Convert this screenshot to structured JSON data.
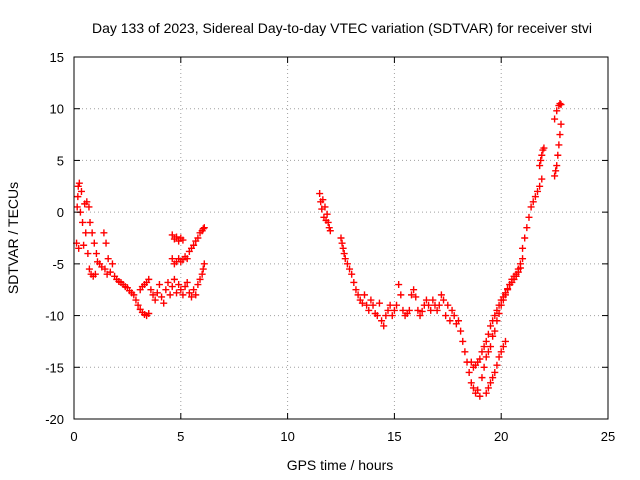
{
  "chart_data": {
    "type": "scatter",
    "title": "Day 133 of 2023, Sidereal Day-to-day VTEC variation (SDTVAR) for receiver stvi",
    "xlabel": "GPS time / hours",
    "ylabel": "SDTVAR / TECUs",
    "xlim": [
      0,
      25
    ],
    "ylim": [
      -20,
      15
    ],
    "xticks": [
      0,
      5,
      10,
      15,
      20,
      25
    ],
    "yticks": [
      -20,
      -15,
      -10,
      -5,
      0,
      5,
      10,
      15
    ],
    "xtick_labels": [
      "0",
      "5",
      "10",
      "15",
      "20",
      "25"
    ],
    "ytick_labels": [
      "-20",
      "-15",
      "-10",
      "-5",
      "0",
      "5",
      "10",
      "15"
    ],
    "grid": true,
    "marker": "+",
    "color": "#ff0000",
    "series": [
      {
        "name": "SDTVAR",
        "points": [
          [
            0.12,
            -3.0
          ],
          [
            0.15,
            0.5
          ],
          [
            0.18,
            1.5
          ],
          [
            0.2,
            2.5
          ],
          [
            0.22,
            -3.5
          ],
          [
            0.25,
            2.8
          ],
          [
            0.3,
            0.0
          ],
          [
            0.35,
            2.0
          ],
          [
            0.4,
            -1.0
          ],
          [
            0.45,
            -3.2
          ],
          [
            0.5,
            0.8
          ],
          [
            0.55,
            -2.0
          ],
          [
            0.6,
            1.0
          ],
          [
            0.65,
            -4.0
          ],
          [
            0.7,
            0.5
          ],
          [
            0.72,
            -5.5
          ],
          [
            0.75,
            -1.0
          ],
          [
            0.8,
            -6.0
          ],
          [
            0.85,
            -2.0
          ],
          [
            0.9,
            -6.2
          ],
          [
            0.95,
            -3.0
          ],
          [
            1.0,
            -6.0
          ],
          [
            1.05,
            -4.0
          ],
          [
            1.1,
            -4.8
          ],
          [
            1.2,
            -5.0
          ],
          [
            1.3,
            -5.3
          ],
          [
            1.4,
            -2.0
          ],
          [
            1.45,
            -5.5
          ],
          [
            1.5,
            -3.0
          ],
          [
            1.55,
            -6.0
          ],
          [
            1.6,
            -4.5
          ],
          [
            1.7,
            -5.8
          ],
          [
            1.8,
            -5.0
          ],
          [
            1.9,
            -6.2
          ],
          [
            2.0,
            -6.5
          ],
          [
            2.1,
            -6.7
          ],
          [
            2.2,
            -6.8
          ],
          [
            2.3,
            -7.0
          ],
          [
            2.4,
            -7.2
          ],
          [
            2.5,
            -7.3
          ],
          [
            2.6,
            -7.6
          ],
          [
            2.7,
            -7.8
          ],
          [
            2.8,
            -8.0
          ],
          [
            2.9,
            -8.5
          ],
          [
            3.0,
            -9.0
          ],
          [
            3.1,
            -9.4
          ],
          [
            3.2,
            -9.7
          ],
          [
            3.3,
            -9.9
          ],
          [
            3.4,
            -10.0
          ],
          [
            3.5,
            -9.8
          ],
          [
            3.1,
            -7.5
          ],
          [
            3.2,
            -7.2
          ],
          [
            3.3,
            -7.0
          ],
          [
            3.4,
            -6.8
          ],
          [
            3.5,
            -6.5
          ],
          [
            3.6,
            -7.5
          ],
          [
            3.7,
            -8.0
          ],
          [
            3.8,
            -8.5
          ],
          [
            3.9,
            -7.8
          ],
          [
            4.0,
            -7.0
          ],
          [
            4.1,
            -8.2
          ],
          [
            4.2,
            -8.8
          ],
          [
            4.3,
            -7.5
          ],
          [
            4.4,
            -6.8
          ],
          [
            4.5,
            -8.0
          ],
          [
            4.6,
            -7.2
          ],
          [
            4.7,
            -6.5
          ],
          [
            4.8,
            -7.8
          ],
          [
            4.9,
            -7.0
          ],
          [
            5.0,
            -7.5
          ],
          [
            5.1,
            -8.0
          ],
          [
            5.2,
            -7.2
          ],
          [
            5.3,
            -6.8
          ],
          [
            5.4,
            -7.8
          ],
          [
            5.5,
            -8.2
          ],
          [
            5.6,
            -7.5
          ],
          [
            5.7,
            -8.0
          ],
          [
            5.8,
            -7.0
          ],
          [
            5.9,
            -6.5
          ],
          [
            6.0,
            -6.0
          ],
          [
            6.05,
            -5.5
          ],
          [
            6.1,
            -5.0
          ],
          [
            4.6,
            -4.5
          ],
          [
            4.7,
            -5.0
          ],
          [
            4.8,
            -4.8
          ],
          [
            4.9,
            -4.5
          ],
          [
            5.0,
            -4.8
          ],
          [
            5.1,
            -4.6
          ],
          [
            5.2,
            -4.3
          ],
          [
            4.6,
            -2.2
          ],
          [
            4.7,
            -2.6
          ],
          [
            4.8,
            -2.4
          ],
          [
            4.9,
            -2.8
          ],
          [
            5.0,
            -2.5
          ],
          [
            5.1,
            -2.7
          ],
          [
            5.3,
            -4.5
          ],
          [
            5.4,
            -3.8
          ],
          [
            5.5,
            -3.5
          ],
          [
            5.6,
            -3.2
          ],
          [
            5.7,
            -2.8
          ],
          [
            5.8,
            -2.5
          ],
          [
            5.9,
            -2.0
          ],
          [
            6.0,
            -1.8
          ],
          [
            6.05,
            -1.6
          ],
          [
            6.1,
            -1.5
          ],
          [
            11.5,
            1.8
          ],
          [
            11.55,
            1.0
          ],
          [
            11.6,
            0.3
          ],
          [
            11.65,
            1.2
          ],
          [
            11.7,
            -0.5
          ],
          [
            11.75,
            0.5
          ],
          [
            11.8,
            -0.8
          ],
          [
            11.85,
            -0.2
          ],
          [
            11.9,
            -1.0
          ],
          [
            11.95,
            -1.5
          ],
          [
            12.0,
            -1.8
          ],
          [
            12.5,
            -2.5
          ],
          [
            12.55,
            -3.0
          ],
          [
            12.6,
            -3.5
          ],
          [
            12.65,
            -4.0
          ],
          [
            12.7,
            -4.5
          ],
          [
            12.8,
            -5.0
          ],
          [
            12.9,
            -5.5
          ],
          [
            13.0,
            -6.0
          ],
          [
            13.1,
            -6.8
          ],
          [
            13.2,
            -7.5
          ],
          [
            13.3,
            -8.0
          ],
          [
            13.4,
            -8.5
          ],
          [
            13.5,
            -8.8
          ],
          [
            13.6,
            -8.0
          ],
          [
            13.7,
            -9.0
          ],
          [
            13.8,
            -9.5
          ],
          [
            13.9,
            -8.5
          ],
          [
            14.0,
            -9.0
          ],
          [
            14.1,
            -9.8
          ],
          [
            14.2,
            -10.0
          ],
          [
            14.3,
            -8.8
          ],
          [
            14.4,
            -10.5
          ],
          [
            14.5,
            -11.0
          ],
          [
            14.6,
            -10.0
          ],
          [
            14.7,
            -9.5
          ],
          [
            14.8,
            -9.0
          ],
          [
            14.9,
            -10.0
          ],
          [
            15.0,
            -9.5
          ],
          [
            15.1,
            -9.0
          ],
          [
            15.2,
            -7.0
          ],
          [
            15.3,
            -8.0
          ],
          [
            15.4,
            -9.5
          ],
          [
            15.5,
            -10.0
          ],
          [
            15.6,
            -9.8
          ],
          [
            15.7,
            -9.5
          ],
          [
            15.8,
            -8.0
          ],
          [
            15.9,
            -7.5
          ],
          [
            16.0,
            -8.2
          ],
          [
            16.1,
            -9.5
          ],
          [
            16.2,
            -10.0
          ],
          [
            16.3,
            -9.6
          ],
          [
            16.4,
            -9.0
          ],
          [
            16.5,
            -8.5
          ],
          [
            16.6,
            -9.0
          ],
          [
            16.7,
            -9.5
          ],
          [
            16.8,
            -8.5
          ],
          [
            16.9,
            -9.0
          ],
          [
            17.0,
            -9.5
          ],
          [
            17.1,
            -9.0
          ],
          [
            17.2,
            -8.0
          ],
          [
            17.3,
            -8.5
          ],
          [
            17.4,
            -10.0
          ],
          [
            17.5,
            -9.0
          ],
          [
            17.6,
            -10.5
          ],
          [
            17.7,
            -9.5
          ],
          [
            17.8,
            -10.0
          ],
          [
            17.9,
            -10.8
          ],
          [
            18.0,
            -10.5
          ],
          [
            18.1,
            -11.5
          ],
          [
            18.2,
            -12.5
          ],
          [
            18.3,
            -13.5
          ],
          [
            18.4,
            -14.5
          ],
          [
            18.5,
            -15.5
          ],
          [
            18.6,
            -16.5
          ],
          [
            18.7,
            -17.0
          ],
          [
            18.8,
            -17.5
          ],
          [
            18.9,
            -17.2
          ],
          [
            19.0,
            -17.8
          ],
          [
            19.1,
            -16.0
          ],
          [
            19.2,
            -15.0
          ],
          [
            19.3,
            -14.0
          ],
          [
            19.4,
            -13.5
          ],
          [
            19.5,
            -13.0
          ],
          [
            19.6,
            -12.0
          ],
          [
            19.7,
            -11.5
          ],
          [
            19.8,
            -10.5
          ],
          [
            19.9,
            -9.8
          ],
          [
            20.0,
            -9.0
          ],
          [
            20.1,
            -8.5
          ],
          [
            20.2,
            -8.0
          ],
          [
            20.3,
            -7.5
          ],
          [
            20.4,
            -7.0
          ],
          [
            20.5,
            -6.5
          ],
          [
            20.6,
            -6.2
          ],
          [
            20.7,
            -6.0
          ],
          [
            20.8,
            -5.5
          ],
          [
            20.9,
            -5.0
          ],
          [
            21.0,
            -4.5
          ],
          [
            18.6,
            -14.5
          ],
          [
            18.7,
            -15.0
          ],
          [
            18.8,
            -14.8
          ],
          [
            18.9,
            -14.5
          ],
          [
            19.0,
            -14.2
          ],
          [
            19.1,
            -13.5
          ],
          [
            19.2,
            -13.0
          ],
          [
            19.3,
            -12.5
          ],
          [
            19.4,
            -11.8
          ],
          [
            19.5,
            -11.0
          ],
          [
            19.6,
            -10.5
          ],
          [
            19.7,
            -10.0
          ],
          [
            19.8,
            -9.5
          ],
          [
            19.9,
            -9.0
          ],
          [
            20.0,
            -8.5
          ],
          [
            20.1,
            -8.2
          ],
          [
            20.2,
            -7.8
          ],
          [
            20.3,
            -7.4
          ],
          [
            20.4,
            -7.0
          ],
          [
            20.5,
            -6.8
          ],
          [
            20.6,
            -6.5
          ],
          [
            20.7,
            -6.2
          ],
          [
            20.8,
            -5.8
          ],
          [
            20.9,
            -5.4
          ],
          [
            19.3,
            -17.5
          ],
          [
            19.4,
            -17.0
          ],
          [
            19.5,
            -16.5
          ],
          [
            19.6,
            -16.0
          ],
          [
            19.7,
            -15.5
          ],
          [
            19.8,
            -14.8
          ],
          [
            19.9,
            -14.0
          ],
          [
            20.0,
            -13.5
          ],
          [
            20.1,
            -13.0
          ],
          [
            20.2,
            -12.5
          ],
          [
            21.0,
            -3.5
          ],
          [
            21.1,
            -2.5
          ],
          [
            21.2,
            -1.5
          ],
          [
            21.3,
            -0.5
          ],
          [
            21.4,
            0.5
          ],
          [
            21.5,
            1.0
          ],
          [
            21.6,
            1.5
          ],
          [
            21.7,
            2.0
          ],
          [
            21.8,
            2.5
          ],
          [
            21.9,
            3.2
          ],
          [
            21.8,
            4.5
          ],
          [
            21.85,
            5.0
          ],
          [
            21.9,
            5.5
          ],
          [
            21.95,
            6.0
          ],
          [
            22.0,
            6.2
          ],
          [
            22.5,
            3.5
          ],
          [
            22.55,
            4.0
          ],
          [
            22.6,
            4.5
          ],
          [
            22.65,
            5.5
          ],
          [
            22.7,
            6.5
          ],
          [
            22.75,
            7.5
          ],
          [
            22.8,
            8.5
          ],
          [
            22.5,
            9.0
          ],
          [
            22.6,
            9.8
          ],
          [
            22.7,
            10.3
          ],
          [
            22.75,
            10.5
          ],
          [
            22.8,
            10.4
          ]
        ]
      }
    ]
  }
}
